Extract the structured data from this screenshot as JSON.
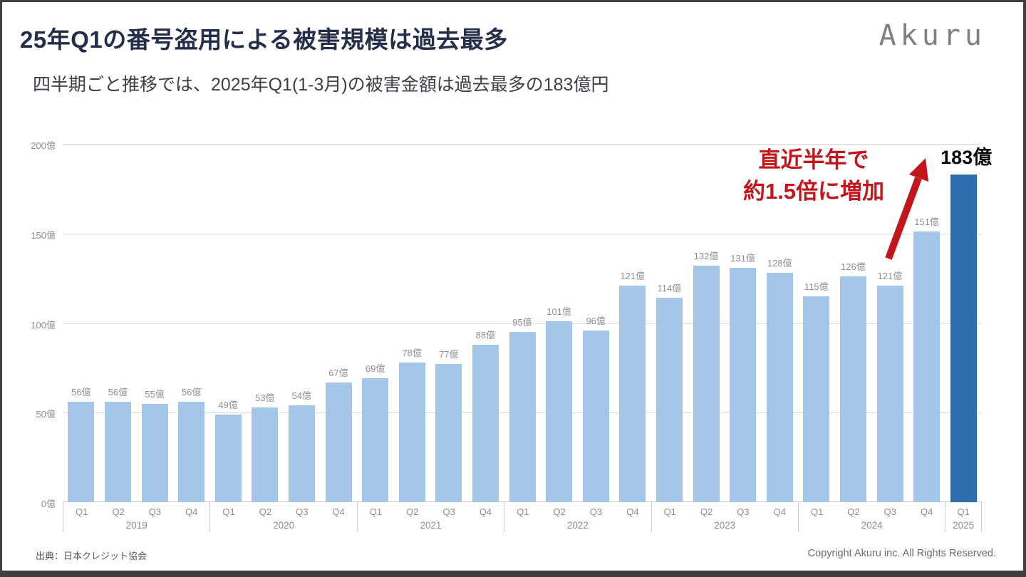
{
  "page": {
    "title": "25年Q1の番号盗用による被害規模は過去最多",
    "subtitle": "四半期ごと推移では、2025年Q1(1-3月)の被害金額は過去最多の183億円",
    "logo": "Akuru",
    "source": "出典：日本クレジット協会",
    "copyright": "Copyright Akuru inc. All Rights Reserved."
  },
  "annotation": {
    "line1": "直近半年で",
    "line2": "約1.5倍に増加",
    "color": "#c2151c"
  },
  "chart_data": {
    "type": "bar",
    "title": "",
    "xlabel": "",
    "ylabel": "",
    "unit": "億",
    "ylim": [
      0,
      200
    ],
    "yticks": [
      0,
      50,
      100,
      150,
      200
    ],
    "ytick_labels": [
      "0億",
      "50億",
      "100億",
      "150億",
      "200億"
    ],
    "grid": true,
    "legend": "none",
    "groups": [
      {
        "year": "2019",
        "quarters": [
          "Q1",
          "Q2",
          "Q3",
          "Q4"
        ],
        "values": [
          56,
          56,
          55,
          56
        ]
      },
      {
        "year": "2020",
        "quarters": [
          "Q1",
          "Q2",
          "Q3",
          "Q4"
        ],
        "values": [
          49,
          53,
          54,
          67
        ]
      },
      {
        "year": "2021",
        "quarters": [
          "Q1",
          "Q2",
          "Q3",
          "Q4"
        ],
        "values": [
          69,
          78,
          77,
          88
        ]
      },
      {
        "year": "2022",
        "quarters": [
          "Q1",
          "Q2",
          "Q3",
          "Q4"
        ],
        "values": [
          95,
          101,
          96,
          121
        ]
      },
      {
        "year": "2023",
        "quarters": [
          "Q1",
          "Q2",
          "Q3",
          "Q4"
        ],
        "values": [
          114,
          132,
          131,
          128
        ]
      },
      {
        "year": "2024",
        "quarters": [
          "Q1",
          "Q2",
          "Q3",
          "Q4"
        ],
        "values": [
          115,
          126,
          121,
          151
        ]
      },
      {
        "year": "2025",
        "quarters": [
          "Q1"
        ],
        "values": [
          183
        ]
      }
    ],
    "bar_color": "#a3c6e8",
    "highlight_color": "#2d6eaf",
    "highlight_index": 24,
    "highlight_label": "183億"
  }
}
